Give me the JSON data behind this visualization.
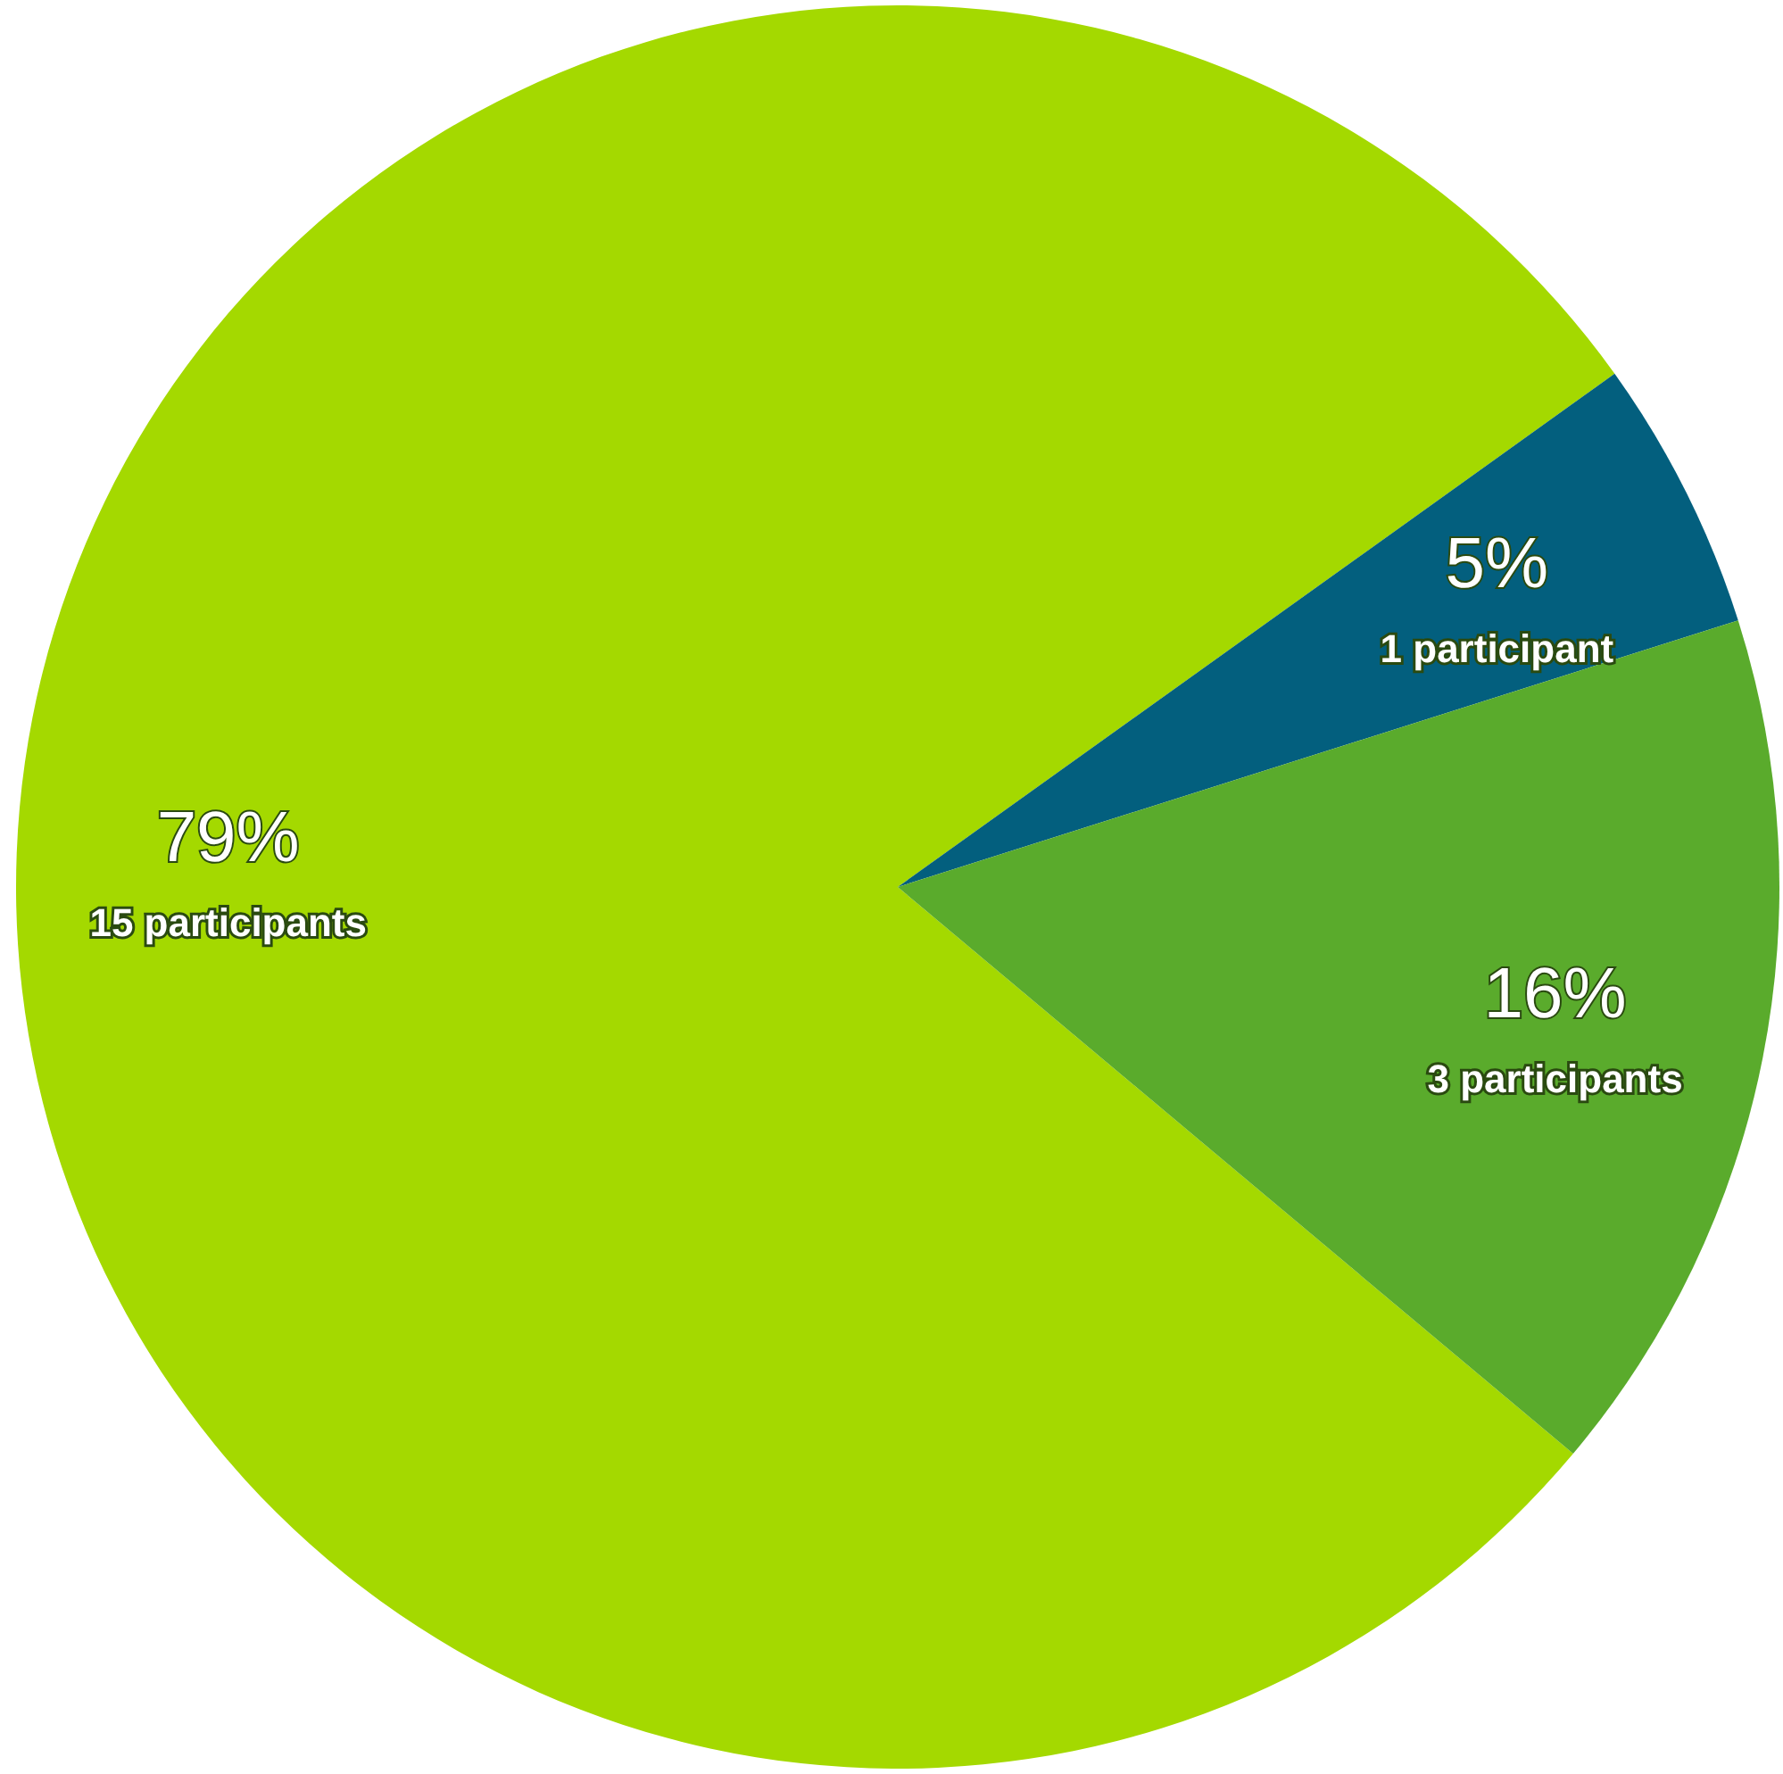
{
  "chart_data": {
    "type": "pie",
    "categories": [
      "15 participants",
      "1 participant",
      "3 participants"
    ],
    "values": [
      79,
      5,
      16
    ],
    "colors": [
      "#a4d900",
      "#035f7e",
      "#5aab2c"
    ],
    "data_labels": true,
    "value_labels": [
      "79%",
      "5%",
      "16%"
    ]
  }
}
